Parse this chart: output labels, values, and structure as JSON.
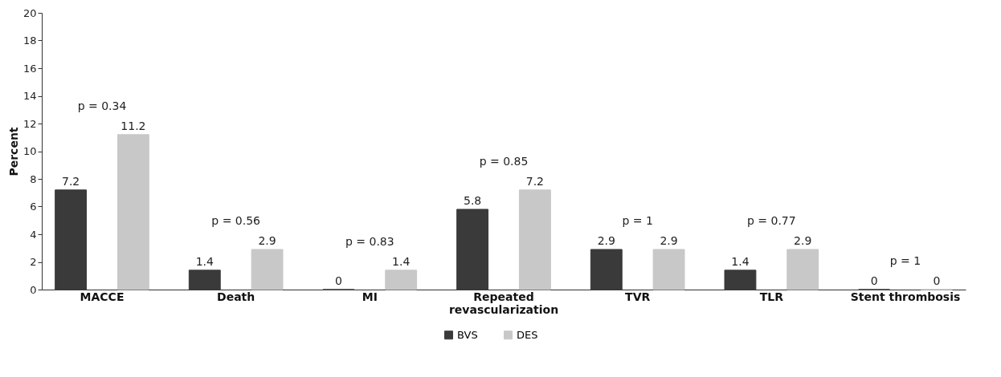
{
  "chart_data": {
    "type": "bar",
    "ylabel": "Percent",
    "categories": [
      "MACCE",
      "Death",
      "MI",
      "Repeated revascularization",
      "TVR",
      "TLR",
      "Stent thrombosis"
    ],
    "series": [
      {
        "name": "BVS",
        "color": "#3a3a3a",
        "values": [
          7.2,
          1.4,
          0,
          5.8,
          2.9,
          1.4,
          0
        ]
      },
      {
        "name": "DES",
        "color": "#c8c8c8",
        "values": [
          11.2,
          2.9,
          1.4,
          7.2,
          2.9,
          2.9,
          0
        ]
      }
    ],
    "ylim": [
      0,
      20
    ],
    "yticks": [
      0,
      2,
      4,
      6,
      8,
      10,
      12,
      14,
      16,
      18,
      20
    ],
    "grid": false,
    "legend": "bottom",
    "data_labels": true,
    "annotations": [
      "p = 0.34",
      "p = 0.56",
      "p = 0.83",
      "p = 0.85",
      "p = 1",
      "p = 0.77",
      "p = 1"
    ]
  }
}
